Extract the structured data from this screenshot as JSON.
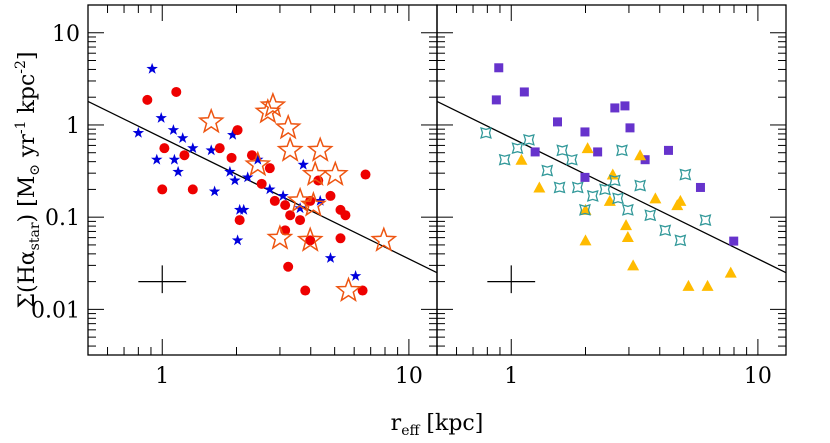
{
  "chart_data": [
    {
      "type": "scatter",
      "xscale": "log",
      "yscale": "log",
      "xlim": [
        0.5,
        13
      ],
      "ylim": [
        0.0032,
        20
      ],
      "xticks": [
        1,
        10
      ],
      "yticks": [
        0.01,
        0.1,
        1,
        10
      ],
      "ytick_labels": true,
      "xminor": [
        0.6,
        0.7,
        0.8,
        0.9,
        2,
        3,
        4,
        5,
        6,
        7,
        8,
        9
      ],
      "yminor": [
        0.004,
        0.005,
        0.006,
        0.007,
        0.008,
        0.009,
        0.02,
        0.03,
        0.04,
        0.05,
        0.06,
        0.07,
        0.08,
        0.09,
        0.2,
        0.3,
        0.4,
        0.5,
        0.6,
        0.7,
        0.8,
        0.9,
        2,
        3,
        4,
        5,
        6,
        7,
        8,
        9,
        20
      ],
      "xlabel": [
        "r",
        "eff",
        " [kpc]"
      ],
      "ylabel": [
        "Σ(Hα",
        "star",
        ") [M",
        "⊙",
        " yr",
        "-1",
        " kpc",
        "-2",
        "]"
      ],
      "fit": {
        "color": "#000000",
        "x": [
          0.5,
          13
        ],
        "values": [
          1.8,
          0.025
        ]
      },
      "errorbar": {
        "x": 1,
        "y": 0.02,
        "xerr": [
          0.8,
          1.25
        ],
        "yerr": [
          0.015,
          0.03
        ]
      },
      "series": [
        {
          "color": "#0000dd",
          "marker": "star",
          "x": [
            0.91,
            0.8,
            0.99,
            0.95,
            1.11,
            1.21,
            1.12,
            1.16,
            1.33,
            1.58,
            1.63,
            1.88,
            1.93,
            1.97,
            2.06,
            2.02,
            2.14,
            2.22,
            2.44,
            2.73,
            3.09,
            3.62,
            3.73,
            4.37,
            4.81,
            6.08
          ],
          "values": [
            4.06,
            0.82,
            1.19,
            0.42,
            0.88,
            0.72,
            0.42,
            0.31,
            0.56,
            0.53,
            0.19,
            0.31,
            0.78,
            0.25,
            0.12,
            0.056,
            0.12,
            0.27,
            0.42,
            0.2,
            0.17,
            0.125,
            0.37,
            0.15,
            0.036,
            0.023
          ]
        },
        {
          "color": "#ee0000",
          "marker": "circle",
          "x": [
            0.87,
            1.14,
            1.02,
            1.23,
            1.0,
            1.33,
            1.71,
            2.02,
            1.91,
            2.06,
            2.31,
            2.53,
            2.73,
            2.86,
            3.15,
            3.3,
            3.15,
            3.62,
            3.98,
            4.29,
            4.81,
            5.28,
            5.53,
            6.67,
            6.49,
            3.24,
            3.8,
            5.28,
            3.98
          ],
          "values": [
            1.87,
            2.28,
            0.56,
            0.47,
            0.2,
            0.2,
            0.56,
            0.88,
            0.44,
            0.093,
            0.47,
            0.23,
            0.34,
            0.15,
            0.135,
            0.105,
            0.072,
            0.093,
            0.15,
            0.25,
            0.17,
            0.12,
            0.105,
            0.29,
            0.016,
            0.029,
            0.016,
            0.059,
            0.056
          ]
        },
        {
          "color": "#ee5511",
          "marker": "open-star",
          "x": [
            1.58,
            2.81,
            2.68,
            3.24,
            3.3,
            2.44,
            4.37,
            4.17,
            5.03,
            3.62,
            4.1,
            3.98,
            3.0,
            7.91,
            5.69
          ],
          "values": [
            1.08,
            1.61,
            1.38,
            0.93,
            0.53,
            0.37,
            0.53,
            0.29,
            0.29,
            0.15,
            0.135,
            0.056,
            0.059,
            0.056,
            0.016
          ]
        }
      ]
    },
    {
      "type": "scatter",
      "xscale": "log",
      "yscale": "log",
      "xlim": [
        0.5,
        13
      ],
      "ylim": [
        0.0032,
        20
      ],
      "xticks": [
        1,
        10
      ],
      "yticks": [
        0.01,
        0.1,
        1,
        10
      ],
      "ytick_labels": false,
      "xminor": [
        0.6,
        0.7,
        0.8,
        0.9,
        2,
        3,
        4,
        5,
        6,
        7,
        8,
        9
      ],
      "yminor": [
        0.004,
        0.005,
        0.006,
        0.007,
        0.008,
        0.009,
        0.02,
        0.03,
        0.04,
        0.05,
        0.06,
        0.07,
        0.08,
        0.09,
        0.2,
        0.3,
        0.4,
        0.5,
        0.6,
        0.7,
        0.8,
        0.9,
        2,
        3,
        4,
        5,
        6,
        7,
        8,
        9,
        20
      ],
      "fit": {
        "color": "#000000",
        "x": [
          0.5,
          13
        ],
        "values": [
          1.8,
          0.025
        ]
      },
      "errorbar": {
        "x": 1,
        "y": 0.02,
        "xerr": [
          0.8,
          1.25
        ],
        "yerr": [
          0.015,
          0.03
        ]
      },
      "series": [
        {
          "color": "#6633cc",
          "marker": "square",
          "x": [
            0.89,
            0.87,
            1.13,
            1.25,
            1.54,
            1.99,
            1.99,
            2.24,
            2.63,
            2.89,
            3.03,
            3.49,
            4.34,
            5.85,
            7.98
          ],
          "values": [
            4.17,
            1.87,
            2.28,
            0.51,
            1.08,
            0.84,
            0.27,
            0.51,
            1.53,
            1.61,
            0.93,
            0.42,
            0.53,
            0.21,
            0.055
          ]
        },
        {
          "color": "#ffbb00",
          "marker": "triangle",
          "x": [
            1.1,
            1.3,
            2.04,
            2.0,
            2.0,
            2.58,
            2.51,
            2.97,
            3.33,
            3.84,
            4.71,
            4.85,
            3.12,
            5.23,
            6.25,
            7.76,
            2.92
          ],
          "values": [
            0.42,
            0.21,
            0.56,
            0.056,
            0.12,
            0.29,
            0.15,
            0.061,
            0.47,
            0.16,
            0.135,
            0.15,
            0.03,
            0.018,
            0.018,
            0.025,
            0.082
          ]
        },
        {
          "color": "#33999a",
          "marker": "open-4star",
          "x": [
            0.79,
            0.94,
            1.06,
            1.18,
            1.4,
            1.61,
            1.76,
            1.86,
            2.14,
            2.4,
            2.63,
            2.71,
            2.81,
            2.97,
            3.33,
            3.66,
            4.21,
            5.08,
            4.85,
            6.13,
            1.99,
            1.57
          ],
          "values": [
            0.82,
            0.42,
            0.56,
            0.69,
            0.32,
            0.53,
            0.42,
            0.21,
            0.17,
            0.2,
            0.25,
            0.16,
            0.53,
            0.12,
            0.22,
            0.105,
            0.072,
            0.29,
            0.056,
            0.093,
            0.12,
            0.21
          ]
        }
      ]
    }
  ]
}
